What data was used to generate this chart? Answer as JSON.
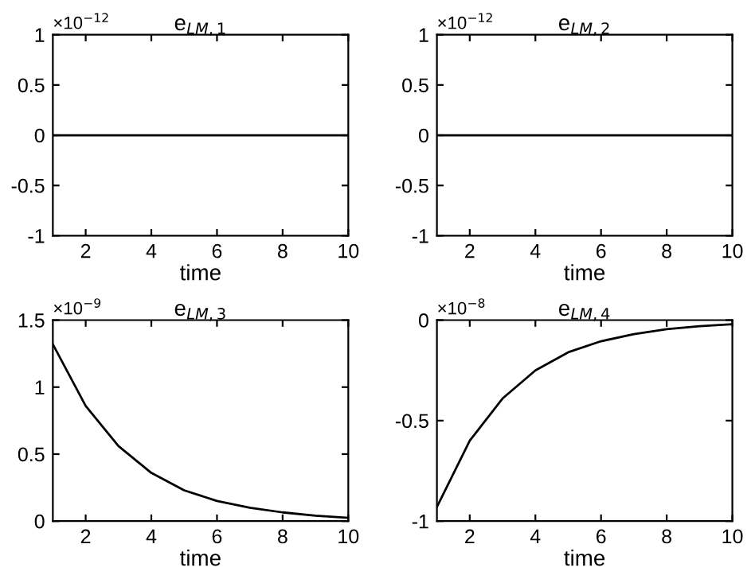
{
  "chart_data": [
    {
      "type": "line",
      "title": "e$_{LM,1}$",
      "xlabel": "time",
      "annotations": [
        "×10$^{−12}$"
      ],
      "x": [
        1,
        2,
        3,
        4,
        5,
        6,
        7,
        8,
        9,
        10
      ],
      "series": [
        {
          "color": "#000000",
          "values": [
            0,
            0,
            0,
            0,
            0,
            0,
            0,
            0,
            0,
            0
          ]
        }
      ],
      "xlim": [
        1,
        10
      ],
      "xticks": [
        2,
        4,
        6,
        8,
        10
      ],
      "ylim": [
        -1,
        1
      ],
      "yticks": [
        -1,
        -0.5,
        0,
        0.5,
        1
      ],
      "grid": false
    },
    {
      "type": "line",
      "title": "e$_{LM,2}$",
      "xlabel": "time",
      "annotations": [
        "×10$^{−12}$"
      ],
      "x": [
        1,
        2,
        3,
        4,
        5,
        6,
        7,
        8,
        9,
        10
      ],
      "series": [
        {
          "color": "#000000",
          "values": [
            0,
            0,
            0,
            0,
            0,
            0,
            0,
            0,
            0,
            0
          ]
        }
      ],
      "xlim": [
        1,
        10
      ],
      "xticks": [
        2,
        4,
        6,
        8,
        10
      ],
      "ylim": [
        -1,
        1
      ],
      "yticks": [
        -1,
        -0.5,
        0,
        0.5,
        1
      ],
      "grid": false
    },
    {
      "type": "line",
      "title": "e$_{LM,3}$",
      "xlabel": "time",
      "annotations": [
        "×10$^{−9}$"
      ],
      "x": [
        1,
        2,
        3,
        4,
        5,
        6,
        7,
        8,
        9,
        10
      ],
      "series": [
        {
          "color": "#000000",
          "values": [
            1.32,
            0.86,
            0.56,
            0.36,
            0.23,
            0.15,
            0.1,
            0.065,
            0.04,
            0.025
          ]
        }
      ],
      "xlim": [
        1,
        10
      ],
      "xticks": [
        2,
        4,
        6,
        8,
        10
      ],
      "ylim": [
        0,
        1.5
      ],
      "yticks": [
        0,
        0.5,
        1,
        1.5
      ],
      "grid": false
    },
    {
      "type": "line",
      "title": "e$_{LM,4}$",
      "xlabel": "time",
      "annotations": [
        "×10$^{−8}$"
      ],
      "x": [
        1,
        2,
        3,
        4,
        5,
        6,
        7,
        8,
        9,
        10
      ],
      "series": [
        {
          "color": "#000000",
          "values": [
            -0.93,
            -0.6,
            -0.39,
            -0.25,
            -0.16,
            -0.105,
            -0.07,
            -0.045,
            -0.03,
            -0.02
          ]
        }
      ],
      "xlim": [
        1,
        10
      ],
      "xticks": [
        2,
        4,
        6,
        8,
        10
      ],
      "ylim": [
        -1,
        0
      ],
      "yticks": [
        -1,
        -0.5,
        0
      ],
      "grid": false
    }
  ]
}
